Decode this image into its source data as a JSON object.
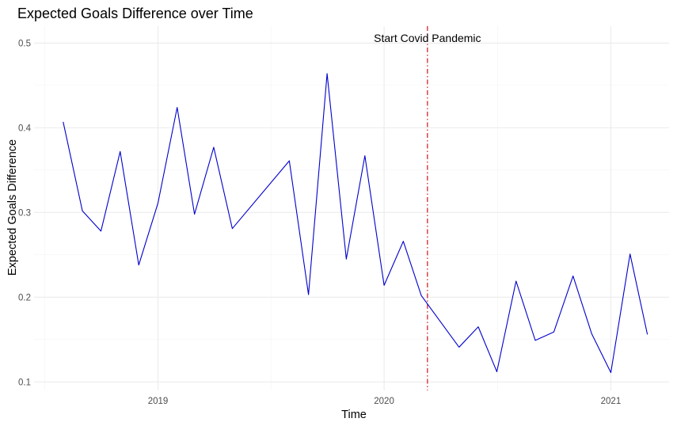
{
  "chart_data": {
    "type": "line",
    "title": "Expected Goals Difference over Time",
    "xlabel": "Time",
    "ylabel": "Expected Goals Difference",
    "xlim": [
      "2018-06-15",
      "2021-04-05"
    ],
    "ylim": [
      0.09,
      0.52
    ],
    "x_ticks": [
      {
        "date": "2019-01-01",
        "label": "2019"
      },
      {
        "date": "2020-01-01",
        "label": "2020"
      },
      {
        "date": "2021-01-01",
        "label": "2021"
      }
    ],
    "y_ticks": [
      {
        "value": 0.1,
        "label": "0.1"
      },
      {
        "value": 0.2,
        "label": "0.2"
      },
      {
        "value": 0.3,
        "label": "0.3"
      },
      {
        "value": 0.4,
        "label": "0.4"
      },
      {
        "value": 0.5,
        "label": "0.5"
      }
    ],
    "grid": true,
    "series": [
      {
        "color": "#0000CD",
        "points": [
          {
            "x": "2018-08-01",
            "y": 0.407
          },
          {
            "x": "2018-09-01",
            "y": 0.302
          },
          {
            "x": "2018-10-01",
            "y": 0.278
          },
          {
            "x": "2018-11-01",
            "y": 0.372
          },
          {
            "x": "2018-12-01",
            "y": 0.238
          },
          {
            "x": "2019-01-01",
            "y": 0.311
          },
          {
            "x": "2019-02-01",
            "y": 0.424
          },
          {
            "x": "2019-03-01",
            "y": 0.298
          },
          {
            "x": "2019-04-01",
            "y": 0.377
          },
          {
            "x": "2019-05-01",
            "y": 0.281
          },
          {
            "x": "2019-08-01",
            "y": 0.361
          },
          {
            "x": "2019-09-01",
            "y": 0.203
          },
          {
            "x": "2019-10-01",
            "y": 0.464
          },
          {
            "x": "2019-11-01",
            "y": 0.245
          },
          {
            "x": "2019-12-01",
            "y": 0.367
          },
          {
            "x": "2020-01-01",
            "y": 0.214
          },
          {
            "x": "2020-02-01",
            "y": 0.266
          },
          {
            "x": "2020-03-01",
            "y": 0.202
          },
          {
            "x": "2020-05-01",
            "y": 0.141
          },
          {
            "x": "2020-06-01",
            "y": 0.165
          },
          {
            "x": "2020-07-01",
            "y": 0.112
          },
          {
            "x": "2020-08-01",
            "y": 0.219
          },
          {
            "x": "2020-09-01",
            "y": 0.149
          },
          {
            "x": "2020-10-01",
            "y": 0.159
          },
          {
            "x": "2020-11-01",
            "y": 0.225
          },
          {
            "x": "2020-12-01",
            "y": 0.157
          },
          {
            "x": "2021-01-01",
            "y": 0.111
          },
          {
            "x": "2021-02-01",
            "y": 0.251
          },
          {
            "x": "2021-03-01",
            "y": 0.156
          }
        ]
      }
    ],
    "annotations": [
      {
        "type": "vline",
        "x": "2020-03-11",
        "color": "#CC0000",
        "linetype": "dashdot",
        "label": "Start Covid Pandemic"
      }
    ]
  }
}
